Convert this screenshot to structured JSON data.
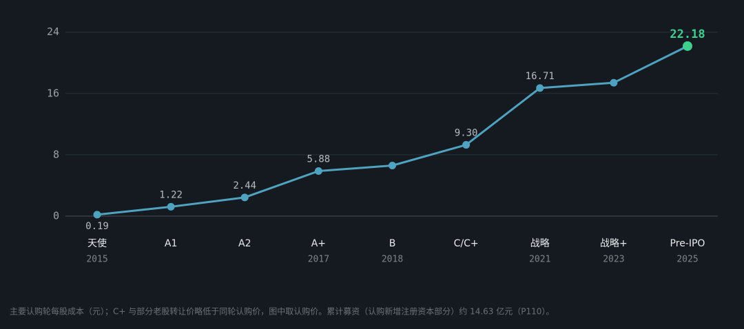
{
  "chart_data": {
    "type": "line",
    "categories": [
      "天使",
      "A1",
      "A2",
      "A+",
      "B",
      "C/C+",
      "战略",
      "战略+",
      "Pre-IPO"
    ],
    "years": [
      "2015",
      null,
      null,
      "2017",
      "2018",
      null,
      "2021",
      "2023",
      "2025"
    ],
    "series": [
      {
        "name": "主要认购轮每股成本（元）",
        "color": "#4fa3c0",
        "highlight_color": "#3ecf8e",
        "values": [
          0.19,
          1.22,
          2.44,
          5.88,
          6.6,
          9.3,
          16.71,
          17.4,
          22.18
        ],
        "value_labels": [
          "0.19",
          "1.22",
          "2.44",
          "5.88",
          null,
          "9.30",
          "16.71",
          null,
          "22.18"
        ]
      }
    ],
    "ylim": [
      0,
      25.5
    ],
    "yticks": [
      0,
      8,
      16,
      24
    ],
    "grid": true,
    "footnote": "主要认购轮每股成本（元）；C+ 与部分老股转让价略低于同轮认购价，图中取认购价。累计募资（认购新增注册资本部分）约 14.63 亿元（P110）。"
  }
}
